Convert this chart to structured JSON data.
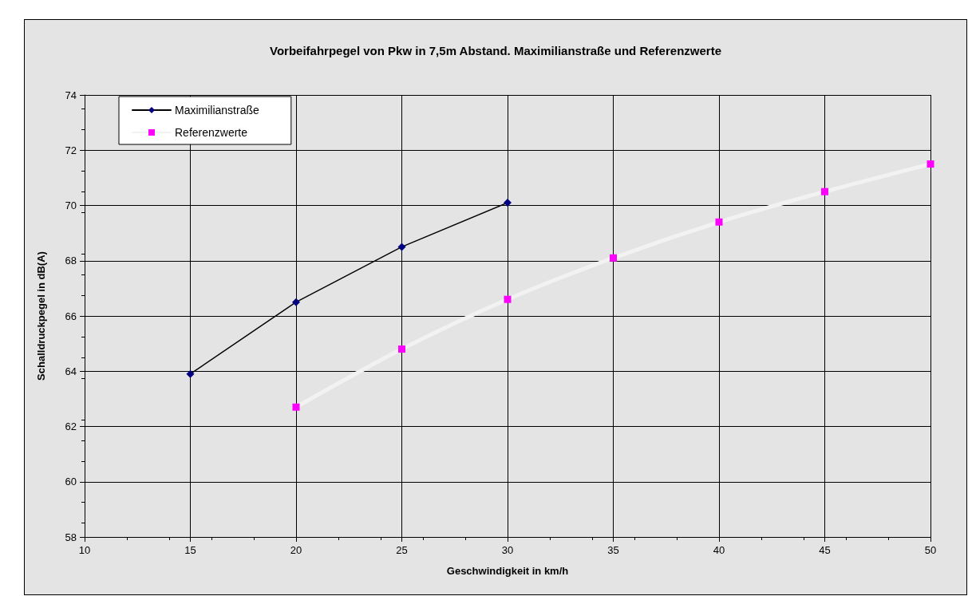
{
  "chart_data": {
    "type": "line",
    "title": "Vorbeifahrpegel von Pkw in 7,5m Abstand. Maximilianstraße und Referenzwerte",
    "xlabel": "Geschwindigkeit in km/h",
    "ylabel": "Schalldruckpegel in dB(A)",
    "xlim": [
      10,
      50
    ],
    "xticks": [
      10,
      15,
      20,
      25,
      30,
      35,
      40,
      45,
      50
    ],
    "ylim": [
      58,
      74
    ],
    "yticks": [
      58,
      60,
      62,
      64,
      66,
      68,
      70,
      72,
      74
    ],
    "grid": true,
    "legend": "top left",
    "series": [
      {
        "name": "Maximilianstraße",
        "color": "#000000",
        "colors": [
          "#000080",
          "#000080",
          "#000080",
          "#000080"
        ],
        "marker": "diamond",
        "x": [
          15,
          20,
          25,
          30
        ],
        "values": [
          63.9,
          66.5,
          68.5,
          70.1
        ]
      },
      {
        "name": "Referenzwerte",
        "color": "#f2f2f2",
        "colors": [
          "#ff00ff",
          "#ff00ff",
          "#ff00ff",
          "#ff00ff",
          "#ff00ff",
          "#ff00ff",
          "#ff00ff"
        ],
        "marker": "square",
        "x": [
          20,
          25,
          30,
          35,
          40,
          45,
          50
        ],
        "values": [
          62.7,
          64.8,
          66.6,
          68.1,
          69.4,
          70.5,
          71.5
        ]
      }
    ]
  }
}
